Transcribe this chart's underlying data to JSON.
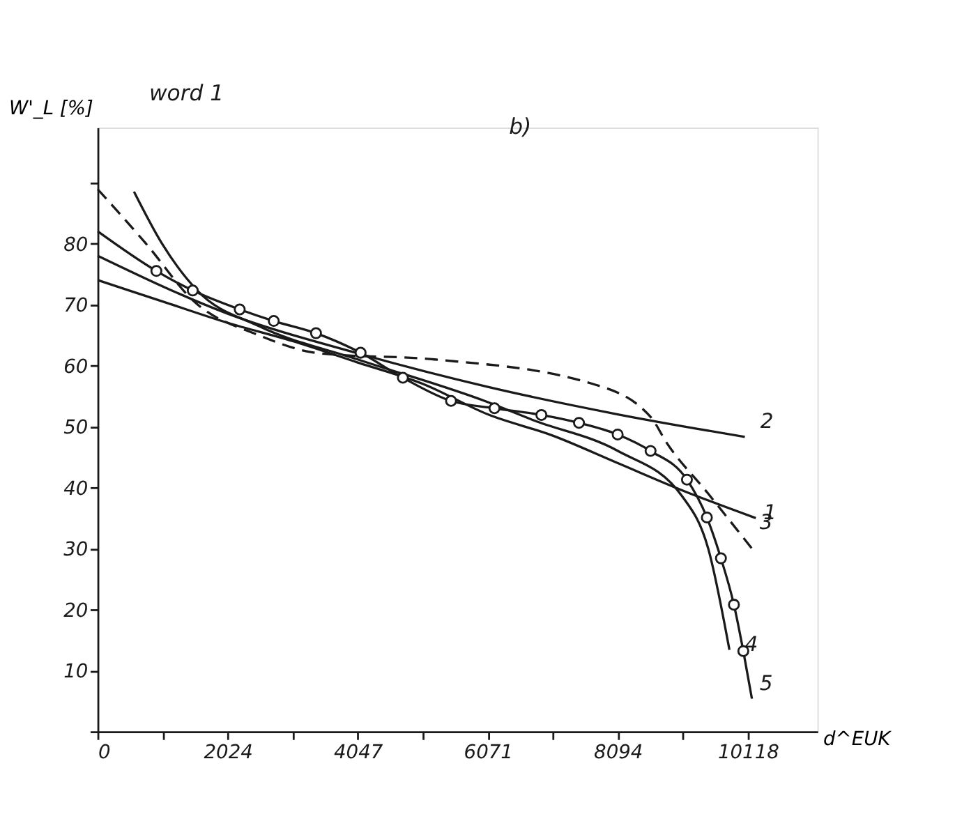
{
  "chart_data": {
    "type": "line",
    "ylabel": "W'_L [%]",
    "xlabel": "d^EUK",
    "annotations": [
      "word 1",
      "b)"
    ],
    "xlim": [
      0,
      11200
    ],
    "ylim": [
      0,
      99
    ],
    "xticks": [
      {
        "value": 0,
        "label": "0"
      },
      {
        "value": 1012,
        "label": null
      },
      2024,
      {
        "value": 3035,
        "label": null
      },
      4047,
      {
        "value": 5059,
        "label": null
      },
      6071,
      {
        "value": 7083,
        "label": null
      },
      8094,
      {
        "value": 9106,
        "label": null
      },
      10118
    ],
    "yticks": [
      {
        "value": 0,
        "label": null
      },
      10,
      20,
      30,
      40,
      50,
      60,
      70,
      80,
      {
        "value": 90,
        "label": null
      }
    ],
    "grid": false,
    "marker": "none",
    "line_style": "solid",
    "series": [
      {
        "name": "1",
        "color": "#1a1a1a",
        "x": [
          0,
          1012,
          2024,
          3035,
          4047,
          5059,
          6071,
          7083,
          8094,
          9106,
          10240
        ],
        "values": [
          74,
          70.5,
          67,
          64,
          60.5,
          57,
          52,
          48.5,
          44,
          39.5,
          35
        ]
      },
      {
        "name": "2",
        "color": "#1a1a1a",
        "x": [
          0,
          2024,
          4047,
          6071,
          8094,
          10070
        ],
        "values": [
          78,
          68.5,
          62,
          56.5,
          52,
          48.3
        ]
      },
      {
        "name": "3",
        "color": "#1a1a1a",
        "line_style": "dashed",
        "x": [
          0,
          750,
          1500,
          2500,
          3450,
          5240,
          7700,
          8610,
          8850,
          9500,
          10180
        ],
        "values": [
          88.9,
          80,
          70.5,
          65,
          62,
          61,
          57,
          51.5,
          47.4,
          39,
          30
        ]
      },
      {
        "name": "4",
        "color": "#1a1a1a",
        "x": [
          565,
          1000,
          1550,
          2500,
          4047,
          6071,
          6790,
          8094,
          9100,
          9500,
          9830
        ],
        "values": [
          88.5,
          80,
          72.3,
          66.5,
          61,
          54,
          51,
          46,
          38.5,
          30,
          13.4
        ]
      },
      {
        "name": "5",
        "color": "#1a1a1a",
        "x": [
          0,
          913,
          1479,
          2210,
          2740,
          3397,
          4091,
          4749,
          5498,
          6174,
          6904,
          7489,
          8091,
          8603,
          9169,
          9479,
          9698,
          9900,
          10046,
          10180
        ],
        "values": [
          82,
          75.5,
          72.3,
          69.2,
          67.3,
          65.3,
          62.1,
          58,
          54.2,
          53,
          51.9,
          50.6,
          48.7,
          46,
          41.3,
          35.1,
          28.4,
          20.8,
          13.2,
          5.4
        ]
      },
      {
        "type": "scatter",
        "marker": "circle",
        "color": "#1a1a1a",
        "x": [
          913,
          1479,
          2210,
          2740,
          3397,
          4091,
          4749,
          5498,
          6174,
          6904,
          7489,
          8091,
          8603,
          9169,
          9479,
          9698,
          9900,
          10046
        ],
        "values": [
          75.5,
          72.3,
          69.2,
          67.3,
          65.3,
          62.1,
          58,
          54.2,
          53,
          51.9,
          50.6,
          48.7,
          46,
          41.3,
          35.1,
          28.4,
          20.8,
          13.2
        ]
      }
    ]
  }
}
